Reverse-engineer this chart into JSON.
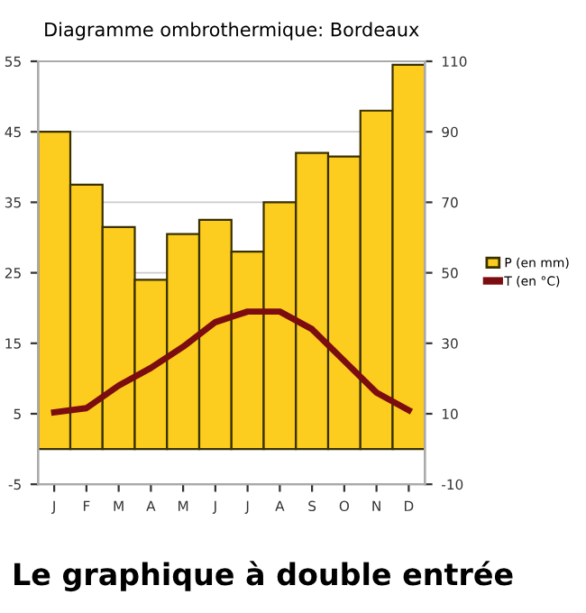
{
  "chart_data": {
    "type": "bar",
    "title": "Diagramme ombrothermique: Bordeaux",
    "categories": [
      "J",
      "F",
      "M",
      "A",
      "M",
      "J",
      "J",
      "A",
      "S",
      "O",
      "N",
      "D"
    ],
    "series": [
      {
        "name": "P (en mm)",
        "axis": "y2",
        "color": "#fccc1e",
        "values": [
          90,
          75,
          63,
          48,
          61,
          65,
          56,
          70,
          84,
          83,
          96,
          109
        ]
      },
      {
        "name": "T (en °C)",
        "type": "line",
        "color": "#7b0c10",
        "values": [
          5.2,
          5.8,
          9,
          11.5,
          14.5,
          18,
          19.5,
          19.5,
          17,
          12.5,
          8,
          5.5
        ]
      }
    ],
    "ylim": [
      -5,
      55
    ],
    "yticks": [
      -5,
      5,
      15,
      25,
      35,
      45,
      55
    ],
    "y2lim": [
      -10,
      110
    ],
    "y2ticks": [
      -10,
      10,
      30,
      50,
      70,
      90,
      110
    ],
    "grid": "y",
    "legend": "right",
    "marker": "none",
    "line_style": "solid",
    "annotations": [
      "Le graphique à double entrée"
    ]
  }
}
